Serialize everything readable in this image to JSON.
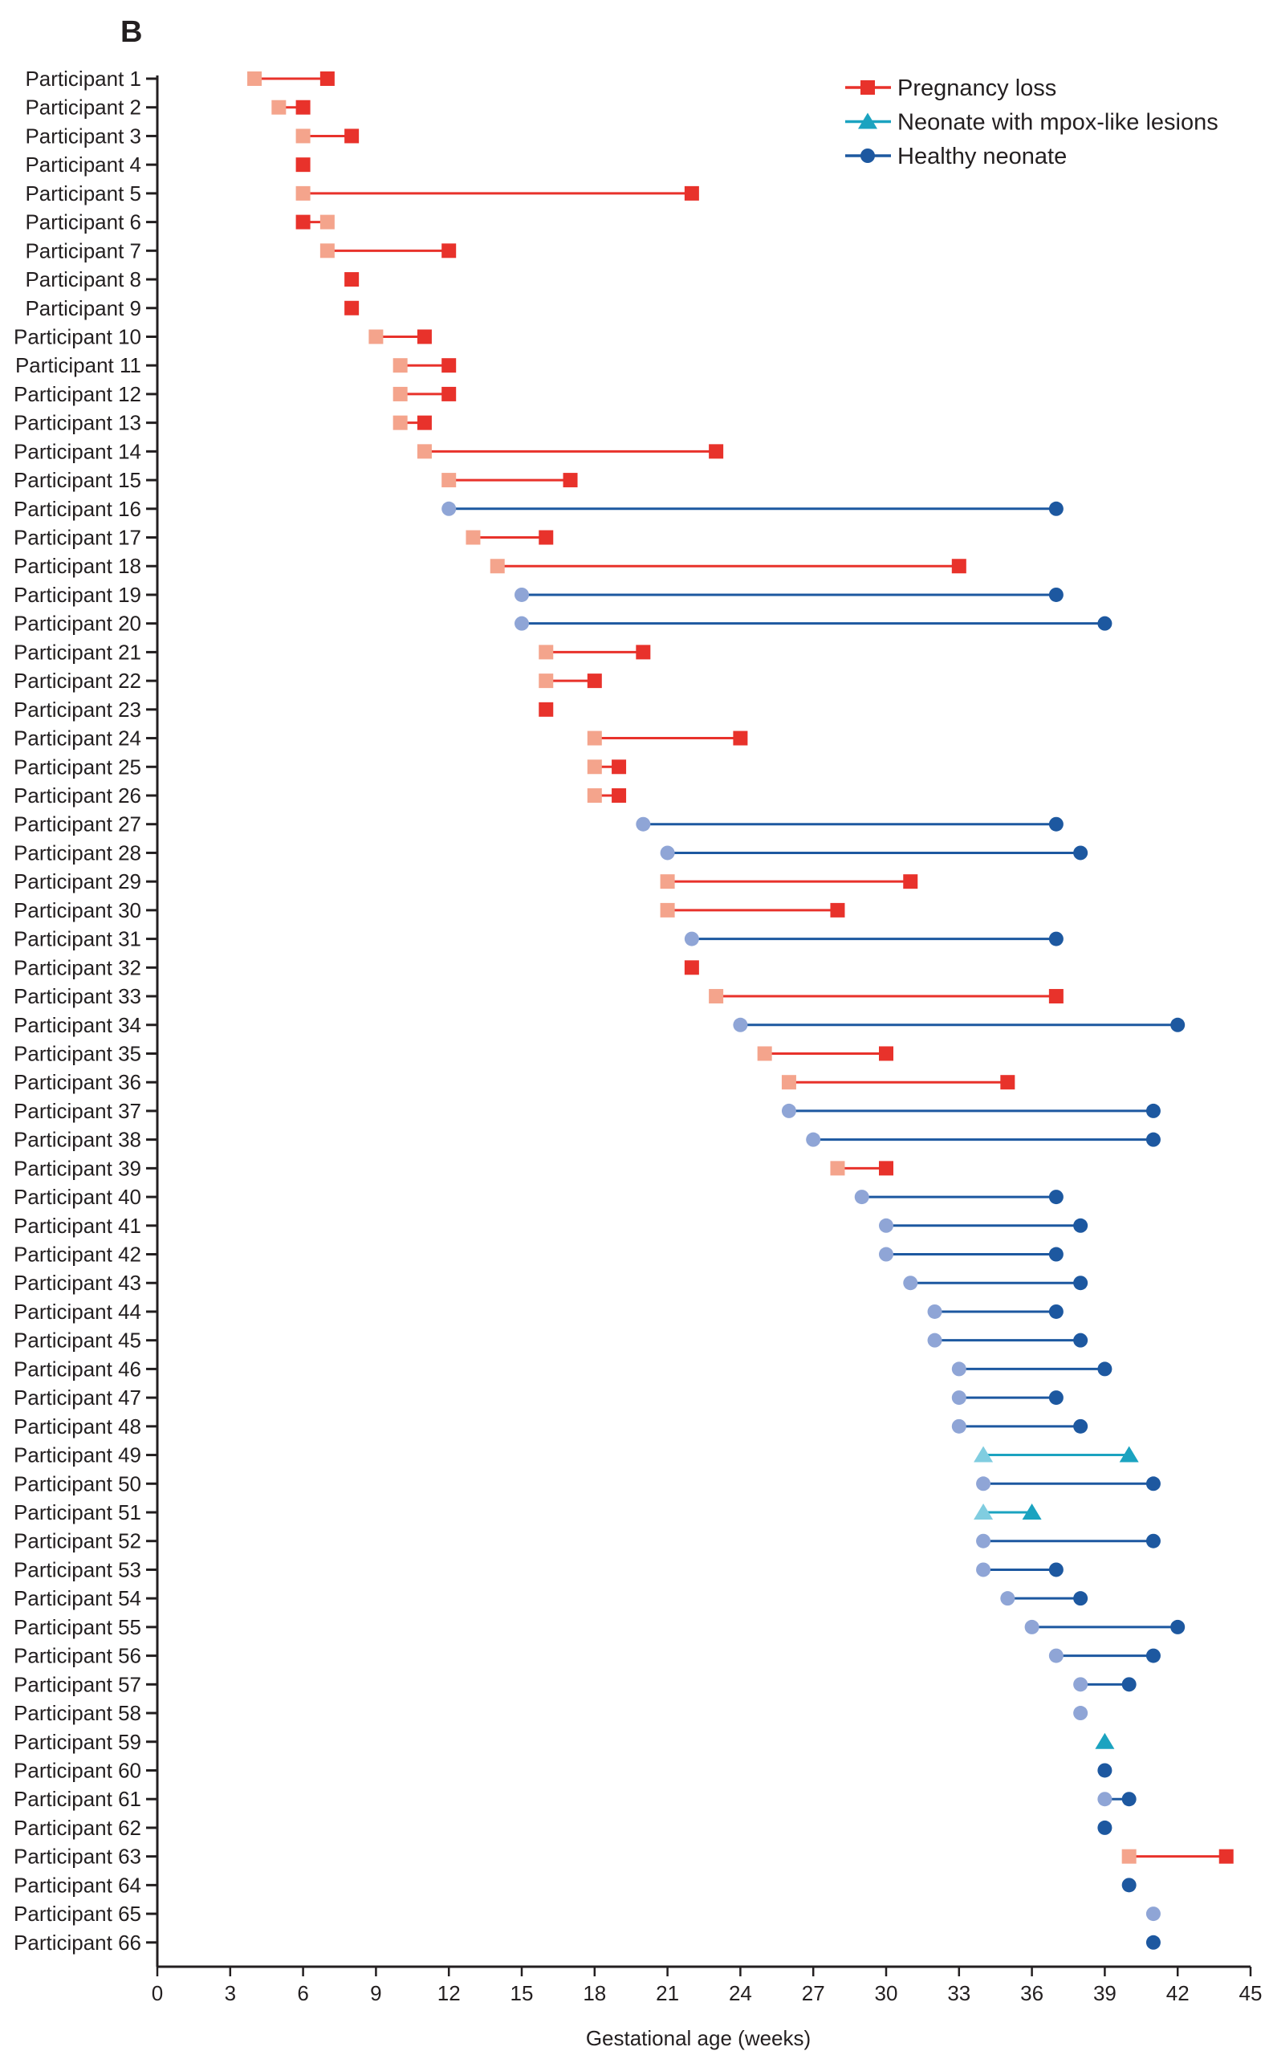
{
  "chart_data": {
    "type": "dumbbell",
    "panel_label": "B",
    "xlabel": "Gestational age (weeks)",
    "xlim": [
      0,
      45
    ],
    "xticks": [
      0,
      3,
      6,
      9,
      12,
      15,
      18,
      21,
      24,
      27,
      30,
      33,
      36,
      39,
      42,
      45
    ],
    "legend": {
      "position": "top-right",
      "items": [
        {
          "key": "loss",
          "label": "Pregnancy loss"
        },
        {
          "key": "mpox",
          "label": "Neonate with mpox-like lesions"
        },
        {
          "key": "healthy",
          "label": "Healthy neonate"
        }
      ]
    },
    "colors": {
      "loss": {
        "line": "#e8322b",
        "start": "#f4a48c",
        "end": "#e8322b"
      },
      "mpox": {
        "line": "#1ba3c0",
        "start": "#80cde0",
        "end": "#1ba3c0"
      },
      "healthy": {
        "line": "#1d58a0",
        "start": "#8fa5d6",
        "end": "#1d58a0"
      }
    },
    "series_note": "first = lighter marker, last = darker marker (gestational weeks)",
    "participants": [
      {
        "label": "Participant 1",
        "outcome": "loss",
        "first": 4,
        "last": 7
      },
      {
        "label": "Participant 2",
        "outcome": "loss",
        "first": 5,
        "last": 6
      },
      {
        "label": "Participant 3",
        "outcome": "loss",
        "first": 6,
        "last": 8
      },
      {
        "label": "Participant 4",
        "outcome": "loss",
        "first": null,
        "last": 6
      },
      {
        "label": "Participant 5",
        "outcome": "loss",
        "first": 6,
        "last": 22
      },
      {
        "label": "Participant 6",
        "outcome": "loss",
        "first": 7,
        "last": 6
      },
      {
        "label": "Participant 7",
        "outcome": "loss",
        "first": 7,
        "last": 12
      },
      {
        "label": "Participant 8",
        "outcome": "loss",
        "first": null,
        "last": 8
      },
      {
        "label": "Participant 9",
        "outcome": "loss",
        "first": null,
        "last": 8
      },
      {
        "label": "Participant 10",
        "outcome": "loss",
        "first": 9,
        "last": 11
      },
      {
        "label": "Participant 11",
        "outcome": "loss",
        "first": 10,
        "last": 12
      },
      {
        "label": "Participant 12",
        "outcome": "loss",
        "first": 10,
        "last": 12
      },
      {
        "label": "Participant 13",
        "outcome": "loss",
        "first": 10,
        "last": 11
      },
      {
        "label": "Participant 14",
        "outcome": "loss",
        "first": 11,
        "last": 23
      },
      {
        "label": "Participant 15",
        "outcome": "loss",
        "first": 12,
        "last": 17
      },
      {
        "label": "Participant 16",
        "outcome": "healthy",
        "first": 12,
        "last": 37
      },
      {
        "label": "Participant 17",
        "outcome": "loss",
        "first": 13,
        "last": 16
      },
      {
        "label": "Participant 18",
        "outcome": "loss",
        "first": 14,
        "last": 33
      },
      {
        "label": "Participant 19",
        "outcome": "healthy",
        "first": 15,
        "last": 37
      },
      {
        "label": "Participant 20",
        "outcome": "healthy",
        "first": 15,
        "last": 39
      },
      {
        "label": "Participant 21",
        "outcome": "loss",
        "first": 16,
        "last": 20
      },
      {
        "label": "Participant 22",
        "outcome": "loss",
        "first": 16,
        "last": 18
      },
      {
        "label": "Participant 23",
        "outcome": "loss",
        "first": null,
        "last": 16
      },
      {
        "label": "Participant 24",
        "outcome": "loss",
        "first": 18,
        "last": 24
      },
      {
        "label": "Participant 25",
        "outcome": "loss",
        "first": 18,
        "last": 19
      },
      {
        "label": "Participant 26",
        "outcome": "loss",
        "first": 18,
        "last": 19
      },
      {
        "label": "Participant 27",
        "outcome": "healthy",
        "first": 20,
        "last": 37
      },
      {
        "label": "Participant 28",
        "outcome": "healthy",
        "first": 21,
        "last": 38
      },
      {
        "label": "Participant 29",
        "outcome": "loss",
        "first": 21,
        "last": 31
      },
      {
        "label": "Participant 30",
        "outcome": "loss",
        "first": 21,
        "last": 28
      },
      {
        "label": "Participant 31",
        "outcome": "healthy",
        "first": 22,
        "last": 37
      },
      {
        "label": "Participant 32",
        "outcome": "loss",
        "first": null,
        "last": 22
      },
      {
        "label": "Participant 33",
        "outcome": "loss",
        "first": 23,
        "last": 37
      },
      {
        "label": "Participant 34",
        "outcome": "healthy",
        "first": 24,
        "last": 42
      },
      {
        "label": "Participant 35",
        "outcome": "loss",
        "first": 25,
        "last": 30
      },
      {
        "label": "Participant 36",
        "outcome": "loss",
        "first": 26,
        "last": 35
      },
      {
        "label": "Participant 37",
        "outcome": "healthy",
        "first": 26,
        "last": 41
      },
      {
        "label": "Participant 38",
        "outcome": "healthy",
        "first": 27,
        "last": 41
      },
      {
        "label": "Participant 39",
        "outcome": "loss",
        "first": 28,
        "last": 30
      },
      {
        "label": "Participant 40",
        "outcome": "healthy",
        "first": 29,
        "last": 37
      },
      {
        "label": "Participant 41",
        "outcome": "healthy",
        "first": 30,
        "last": 38
      },
      {
        "label": "Participant 42",
        "outcome": "healthy",
        "first": 30,
        "last": 37
      },
      {
        "label": "Participant 43",
        "outcome": "healthy",
        "first": 31,
        "last": 38
      },
      {
        "label": "Participant 44",
        "outcome": "healthy",
        "first": 32,
        "last": 37
      },
      {
        "label": "Participant 45",
        "outcome": "healthy",
        "first": 32,
        "last": 38
      },
      {
        "label": "Participant 46",
        "outcome": "healthy",
        "first": 33,
        "last": 39
      },
      {
        "label": "Participant 47",
        "outcome": "healthy",
        "first": 33,
        "last": 37
      },
      {
        "label": "Participant 48",
        "outcome": "healthy",
        "first": 33,
        "last": 38
      },
      {
        "label": "Participant 49",
        "outcome": "mpox",
        "first": 34,
        "last": 40
      },
      {
        "label": "Participant 50",
        "outcome": "healthy",
        "first": 34,
        "last": 41
      },
      {
        "label": "Participant 51",
        "outcome": "mpox",
        "first": 34,
        "last": 36
      },
      {
        "label": "Participant 52",
        "outcome": "healthy",
        "first": 34,
        "last": 41
      },
      {
        "label": "Participant 53",
        "outcome": "healthy",
        "first": 34,
        "last": 37
      },
      {
        "label": "Participant 54",
        "outcome": "healthy",
        "first": 35,
        "last": 38
      },
      {
        "label": "Participant 55",
        "outcome": "healthy",
        "first": 36,
        "last": 42
      },
      {
        "label": "Participant 56",
        "outcome": "healthy",
        "first": 37,
        "last": 41
      },
      {
        "label": "Participant 57",
        "outcome": "healthy",
        "first": 38,
        "last": 40
      },
      {
        "label": "Participant 58",
        "outcome": "healthy",
        "first": 38,
        "last": null
      },
      {
        "label": "Participant 59",
        "outcome": "mpox",
        "first": null,
        "last": 39
      },
      {
        "label": "Participant 60",
        "outcome": "healthy",
        "first": null,
        "last": 39
      },
      {
        "label": "Participant 61",
        "outcome": "healthy",
        "first": 39,
        "last": 40
      },
      {
        "label": "Participant 62",
        "outcome": "healthy",
        "first": null,
        "last": 39
      },
      {
        "label": "Participant 63",
        "outcome": "loss",
        "first": 40,
        "last": 44
      },
      {
        "label": "Participant 64",
        "outcome": "healthy",
        "first": null,
        "last": 40
      },
      {
        "label": "Participant 65",
        "outcome": "healthy",
        "first": 41,
        "last": null
      },
      {
        "label": "Participant 66",
        "outcome": "healthy",
        "first": null,
        "last": 41
      }
    ]
  }
}
